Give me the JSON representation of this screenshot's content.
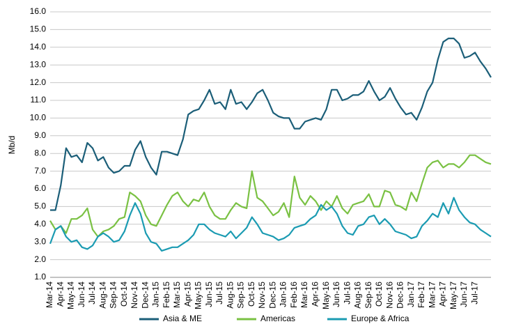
{
  "chart_data": {
    "type": "line",
    "y_label": "Mb/d",
    "categories": [
      "Mar-14",
      null,
      "Apr-14",
      null,
      "May-14",
      null,
      "Jun-14",
      null,
      "Jul-14",
      null,
      "Aug-14",
      null,
      "Sep-14",
      null,
      "Oct-14",
      null,
      "Nov-14",
      null,
      "Dec-14",
      null,
      "Jan-15",
      null,
      "Feb-15",
      null,
      "Mar-15",
      null,
      "Apr-15",
      null,
      "May-15",
      null,
      "Jun-15",
      null,
      "Jul-15",
      null,
      "Aug-15",
      null,
      "Sep-15",
      null,
      "Oct-15",
      null,
      "Nov-15",
      null,
      "Dec-15",
      null,
      "Jan-16",
      null,
      "Feb-16",
      null,
      "Mar-16",
      null,
      "Apr-16",
      null,
      "May-16",
      null,
      "Jun-16",
      null,
      "Jul-16",
      null,
      "Aug-16",
      null,
      "Sep-16",
      null,
      "Oct-16",
      null,
      "Nov-16",
      null,
      "Dec-16",
      null,
      "Jan-17",
      null,
      "Feb-17",
      null,
      "Mar-17",
      null,
      "Apr-17",
      null,
      "May-17",
      null,
      "Jun-17",
      null,
      "Jul-17",
      null,
      null,
      null
    ],
    "series": [
      {
        "name": "Asia & ME",
        "color": "#1b5e78",
        "values": [
          4.8,
          4.8,
          6.2,
          8.3,
          7.8,
          7.9,
          7.5,
          8.6,
          8.3,
          7.6,
          7.8,
          7.2,
          6.9,
          7.0,
          7.3,
          7.3,
          8.2,
          8.7,
          7.8,
          7.2,
          6.8,
          8.1,
          8.1,
          8.0,
          7.9,
          8.8,
          10.2,
          10.4,
          10.5,
          11.0,
          11.6,
          10.8,
          10.9,
          10.5,
          11.6,
          10.8,
          10.9,
          10.5,
          10.9,
          11.4,
          11.6,
          11.0,
          10.3,
          10.1,
          10.0,
          10.0,
          9.4,
          9.4,
          9.8,
          9.9,
          10.0,
          9.9,
          10.5,
          11.6,
          11.6,
          11.0,
          11.1,
          11.3,
          11.3,
          11.5,
          12.1,
          11.5,
          11.0,
          11.2,
          11.7,
          11.1,
          10.6,
          10.2,
          10.3,
          9.9,
          10.6,
          11.5,
          12.0,
          13.3,
          14.3,
          14.5,
          14.5,
          14.2,
          13.4,
          13.5,
          13.7,
          13.2,
          12.8,
          12.3
        ]
      },
      {
        "name": "Americas",
        "color": "#7ac143",
        "values": [
          4.2,
          3.7,
          3.9,
          3.5,
          4.3,
          4.3,
          4.5,
          4.9,
          3.7,
          3.3,
          3.6,
          3.7,
          3.9,
          4.3,
          4.4,
          5.8,
          5.6,
          5.3,
          4.5,
          4.0,
          3.9,
          4.5,
          5.1,
          5.6,
          5.8,
          5.3,
          5.0,
          5.4,
          5.3,
          5.8,
          5.0,
          4.5,
          4.3,
          4.3,
          4.8,
          5.2,
          5.0,
          4.9,
          7.0,
          5.5,
          5.3,
          4.9,
          4.5,
          4.7,
          5.2,
          4.4,
          6.7,
          5.5,
          5.1,
          5.6,
          5.3,
          4.8,
          5.3,
          5.0,
          5.6,
          4.9,
          4.6,
          5.1,
          5.2,
          5.3,
          5.7,
          5.0,
          5.0,
          5.9,
          5.8,
          5.1,
          5.0,
          4.8,
          5.8,
          5.3,
          6.3,
          7.2,
          7.5,
          7.6,
          7.2,
          7.4,
          7.4,
          7.2,
          7.5,
          7.9,
          7.9,
          7.7,
          7.5,
          7.4
        ]
      },
      {
        "name": "Europe & Africa",
        "color": "#1b9bb2",
        "values": [
          2.9,
          3.7,
          3.9,
          3.3,
          3.0,
          3.1,
          2.7,
          2.6,
          2.8,
          3.3,
          3.5,
          3.3,
          3.0,
          3.1,
          3.6,
          4.5,
          5.2,
          4.6,
          3.5,
          3.0,
          2.9,
          2.5,
          2.6,
          2.7,
          2.7,
          2.9,
          3.1,
          3.4,
          4.0,
          4.0,
          3.7,
          3.5,
          3.4,
          3.3,
          3.6,
          3.2,
          3.5,
          3.8,
          4.4,
          4.0,
          3.5,
          3.4,
          3.3,
          3.1,
          3.2,
          3.4,
          3.8,
          3.9,
          4.0,
          4.3,
          4.5,
          5.1,
          4.8,
          5.0,
          4.6,
          3.9,
          3.5,
          3.4,
          3.9,
          4.0,
          4.4,
          4.5,
          4.0,
          4.3,
          4.0,
          3.6,
          3.5,
          3.4,
          3.2,
          3.3,
          3.9,
          4.2,
          4.6,
          4.4,
          5.2,
          4.6,
          5.5,
          4.8,
          4.4,
          4.1,
          4.0,
          3.7,
          3.5,
          3.3
        ]
      }
    ],
    "ylim": [
      1,
      16
    ],
    "yticks": [
      {
        "value": 1,
        "label": "1.0"
      },
      {
        "value": 2,
        "label": "2.0"
      },
      {
        "value": 3,
        "label": "3.0"
      },
      {
        "value": 4,
        "label": "4.0"
      },
      {
        "value": 5,
        "label": "5.0"
      },
      {
        "value": 6,
        "label": "6.0"
      },
      {
        "value": 7,
        "label": "7.0"
      },
      {
        "value": 8,
        "label": "8.0"
      },
      {
        "value": 9,
        "label": "9.0"
      },
      {
        "value": 10,
        "label": "10.0"
      },
      {
        "value": 11,
        "label": "11.0"
      },
      {
        "value": 12,
        "label": "12.0"
      },
      {
        "value": 13,
        "label": "13.0"
      },
      {
        "value": 14,
        "label": "14.0"
      },
      {
        "value": 15,
        "label": "15.0"
      },
      {
        "value": 16,
        "label": "16.0"
      }
    ],
    "grid": true,
    "legend": "bottom"
  }
}
